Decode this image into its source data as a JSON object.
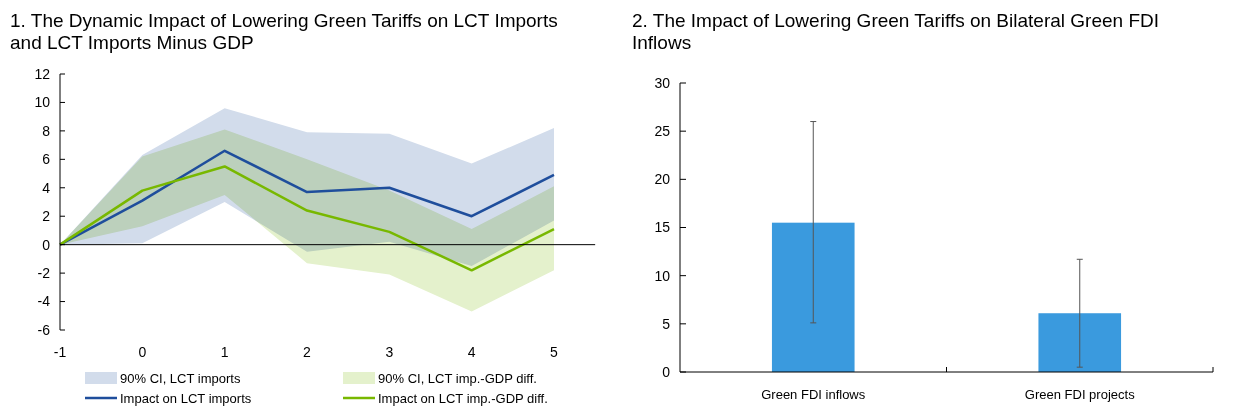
{
  "chart_data": [
    {
      "type": "line",
      "title": "1. The Dynamic Impact of Lowering Green Tariffs on LCT Imports and LCT Imports Minus GDP",
      "x": [
        -1,
        0,
        1,
        2,
        3,
        4,
        5
      ],
      "xlim": [
        -1,
        5.5
      ],
      "xticks": [
        -1,
        0,
        1,
        2,
        3,
        4,
        5
      ],
      "ylim": [
        -6,
        12
      ],
      "yticks": [
        -6,
        -4,
        -2,
        0,
        2,
        4,
        6,
        8,
        10,
        12
      ],
      "legend": "bottom",
      "ref_lines": [
        {
          "axis": "y",
          "value": 0,
          "color": "#000000"
        }
      ],
      "annotations": [
        "90% CI, LCT imports",
        "90% CI, LCT imp.-GDP diff."
      ],
      "series": [
        {
          "type": "line",
          "name": "Impact on LCT imports",
          "color": "#1f4e9c",
          "values": [
            0,
            3.1,
            6.6,
            3.7,
            4.0,
            2.0,
            4.9
          ],
          "lower": [
            0,
            0.1,
            3.0,
            -0.5,
            0.2,
            -1.5,
            1.7
          ],
          "upper": [
            0,
            6.3,
            9.6,
            7.9,
            7.8,
            5.7,
            8.2
          ]
        },
        {
          "type": "line",
          "name": "Impact on LCT imp.-GDP diff.",
          "color": "#78b800",
          "values": [
            0,
            3.8,
            5.5,
            2.4,
            0.9,
            -1.8,
            1.1
          ],
          "lower": [
            0,
            1.3,
            3.5,
            -1.3,
            -2.1,
            -4.7,
            -1.8
          ],
          "upper": [
            0,
            6.2,
            8.1,
            6.0,
            3.8,
            1.1,
            4.1
          ]
        }
      ]
    },
    {
      "type": "bar",
      "title": "2. The Impact of Lowering Green Tariffs on Bilateral Green FDI Inflows",
      "categories": [
        "Green FDI inflows",
        "Green FDI projects"
      ],
      "values": [
        15.5,
        6.1
      ],
      "errors": [
        [
          5.1,
          26
        ],
        [
          0.5,
          11.7
        ]
      ],
      "color": "#3a9ade",
      "ylim": [
        0,
        30
      ],
      "yticks": [
        0,
        5,
        10,
        15,
        20,
        25,
        30
      ]
    }
  ]
}
